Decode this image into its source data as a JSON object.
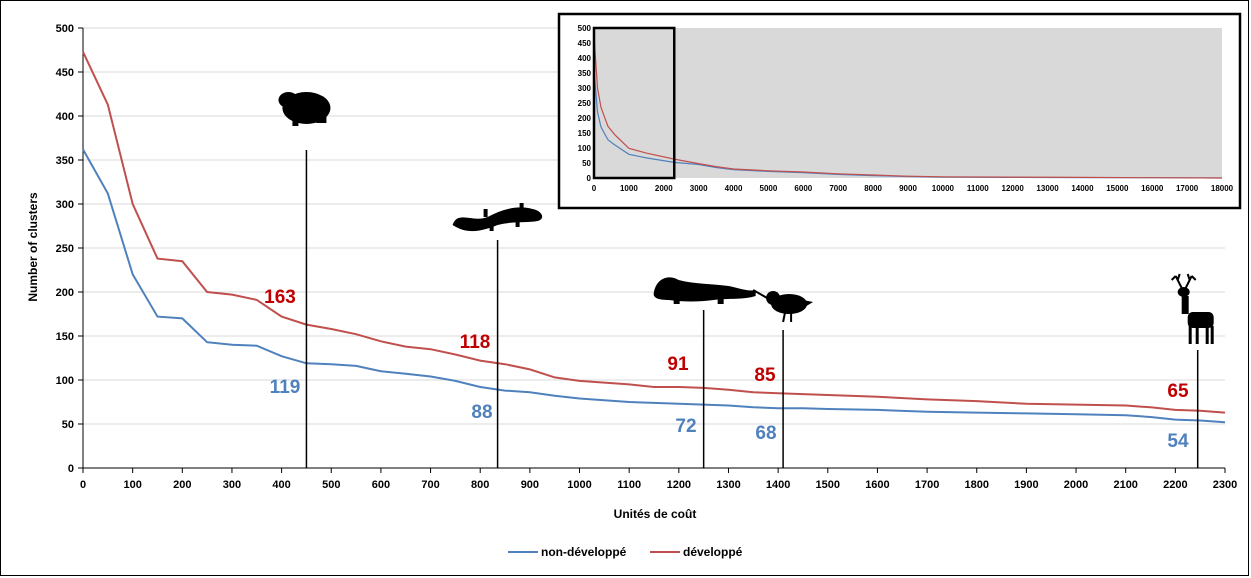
{
  "chart_data": [
    {
      "type": "line",
      "title": "",
      "xlabel": "Unités de coût",
      "ylabel": "Number of clusters",
      "xlim": [
        0,
        2300
      ],
      "ylim": [
        0,
        500
      ],
      "x_ticks": [
        0,
        100,
        200,
        300,
        400,
        500,
        600,
        700,
        800,
        900,
        1000,
        1100,
        1200,
        1300,
        1400,
        1500,
        1600,
        1700,
        1800,
        1900,
        2000,
        2100,
        2200,
        2300
      ],
      "y_ticks": [
        0,
        50,
        100,
        150,
        200,
        250,
        300,
        350,
        400,
        450,
        500
      ],
      "grid": true,
      "legend": {
        "placement": "bottom"
      },
      "series": [
        {
          "name": "non-développé",
          "color": "#4f81bd",
          "points": [
            [
              0,
              362
            ],
            [
              50,
              312
            ],
            [
              100,
              220
            ],
            [
              150,
              172
            ],
            [
              200,
              170
            ],
            [
              250,
              143
            ],
            [
              300,
              140
            ],
            [
              350,
              139
            ],
            [
              400,
              127
            ],
            [
              450,
              119
            ],
            [
              500,
              118
            ],
            [
              550,
              116
            ],
            [
              600,
              110
            ],
            [
              650,
              107
            ],
            [
              700,
              104
            ],
            [
              750,
              99
            ],
            [
              800,
              92
            ],
            [
              850,
              88
            ],
            [
              900,
              86
            ],
            [
              950,
              82
            ],
            [
              1000,
              79
            ],
            [
              1050,
              77
            ],
            [
              1100,
              75
            ],
            [
              1150,
              74
            ],
            [
              1200,
              73
            ],
            [
              1250,
              72
            ],
            [
              1300,
              71
            ],
            [
              1350,
              69
            ],
            [
              1400,
              68
            ],
            [
              1450,
              68
            ],
            [
              1500,
              67
            ],
            [
              1600,
              66
            ],
            [
              1700,
              64
            ],
            [
              1800,
              63
            ],
            [
              1900,
              62
            ],
            [
              2000,
              61
            ],
            [
              2100,
              60
            ],
            [
              2150,
              58
            ],
            [
              2200,
              55
            ],
            [
              2250,
              54
            ],
            [
              2300,
              52
            ]
          ]
        },
        {
          "name": "développé",
          "color": "#c0504d",
          "points": [
            [
              0,
              473
            ],
            [
              50,
              413
            ],
            [
              100,
              300
            ],
            [
              150,
              238
            ],
            [
              200,
              235
            ],
            [
              250,
              200
            ],
            [
              300,
              197
            ],
            [
              350,
              191
            ],
            [
              400,
              172
            ],
            [
              450,
              163
            ],
            [
              500,
              158
            ],
            [
              550,
              152
            ],
            [
              600,
              144
            ],
            [
              650,
              138
            ],
            [
              700,
              135
            ],
            [
              750,
              129
            ],
            [
              800,
              122
            ],
            [
              850,
              118
            ],
            [
              900,
              112
            ],
            [
              950,
              103
            ],
            [
              1000,
              99
            ],
            [
              1050,
              97
            ],
            [
              1100,
              95
            ],
            [
              1150,
              92
            ],
            [
              1200,
              92
            ],
            [
              1250,
              91
            ],
            [
              1300,
              89
            ],
            [
              1350,
              86
            ],
            [
              1400,
              85
            ],
            [
              1450,
              84
            ],
            [
              1500,
              83
            ],
            [
              1600,
              81
            ],
            [
              1700,
              78
            ],
            [
              1800,
              76
            ],
            [
              1900,
              73
            ],
            [
              2000,
              72
            ],
            [
              2100,
              71
            ],
            [
              2150,
              69
            ],
            [
              2200,
              66
            ],
            [
              2250,
              65
            ],
            [
              2300,
              63
            ]
          ]
        }
      ],
      "markers": [
        {
          "x": 450,
          "silhouette": "toad-icon",
          "label_red": "163",
          "label_blue": "119"
        },
        {
          "x": 835,
          "silhouette": "salamander-icon",
          "label_red": "118",
          "label_blue": "88"
        },
        {
          "x": 1250,
          "silhouette": "stoat-icon",
          "label_red": "91",
          "label_blue": "72"
        },
        {
          "x": 1410,
          "silhouette": "woodcock-icon",
          "label_red": "85",
          "label_blue": "68"
        },
        {
          "x": 2245,
          "silhouette": "deer-icon",
          "label_red": "65",
          "label_blue": "54"
        }
      ]
    },
    {
      "type": "line",
      "title": "",
      "xlim": [
        0,
        18000
      ],
      "ylim": [
        0,
        500
      ],
      "x_ticks": [
        0,
        1000,
        2000,
        3000,
        4000,
        5000,
        6000,
        7000,
        8000,
        9000,
        10000,
        11000,
        12000,
        13000,
        14000,
        15000,
        16000,
        17000,
        18000
      ],
      "y_ticks": [
        0,
        50,
        100,
        150,
        200,
        250,
        300,
        350,
        400,
        450,
        500
      ],
      "highlight_box_x": [
        0,
        2300
      ],
      "series": [
        {
          "name": "non-développé",
          "color": "#4f81bd",
          "points": [
            [
              0,
              360
            ],
            [
              100,
              220
            ],
            [
              200,
              170
            ],
            [
              400,
              127
            ],
            [
              600,
              110
            ],
            [
              1000,
              79
            ],
            [
              1500,
              67
            ],
            [
              2300,
              52
            ],
            [
              3000,
              45
            ],
            [
              3500,
              35
            ],
            [
              4000,
              28
            ],
            [
              5000,
              22
            ],
            [
              6000,
              18
            ],
            [
              7000,
              12
            ],
            [
              8000,
              8
            ],
            [
              9000,
              5
            ],
            [
              10000,
              3
            ],
            [
              12000,
              2
            ],
            [
              14000,
              1
            ],
            [
              16000,
              1
            ],
            [
              18000,
              0
            ]
          ]
        },
        {
          "name": "développé",
          "color": "#c0504d",
          "points": [
            [
              0,
              473
            ],
            [
              100,
              300
            ],
            [
              200,
              235
            ],
            [
              400,
              172
            ],
            [
              600,
              144
            ],
            [
              1000,
              99
            ],
            [
              1500,
              83
            ],
            [
              2300,
              63
            ],
            [
              3000,
              48
            ],
            [
              3500,
              38
            ],
            [
              4000,
              30
            ],
            [
              5000,
              24
            ],
            [
              6000,
              20
            ],
            [
              7000,
              14
            ],
            [
              8000,
              10
            ],
            [
              9000,
              6
            ],
            [
              10000,
              4
            ],
            [
              12000,
              3
            ],
            [
              14000,
              2
            ],
            [
              16000,
              1
            ],
            [
              18000,
              0
            ]
          ]
        }
      ]
    }
  ]
}
